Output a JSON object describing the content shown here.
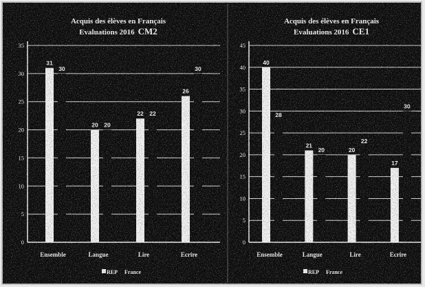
{
  "colors": {
    "background": "#0e0e0e",
    "frame": "#bdbdbd",
    "divider": "#5a5a5a"
  },
  "chart_data": [
    {
      "type": "bar",
      "title": "Acquis des élèves en Français",
      "subtitle": "Evaluations 2016",
      "level": "CM2",
      "xlabel": "",
      "ylabel": "",
      "categories": [
        "Ensemble",
        "Langue",
        "Lire",
        "Ecrire"
      ],
      "series": [
        {
          "name": "REP",
          "color": "#f2f2f2",
          "values": [
            31,
            20,
            22,
            26
          ]
        },
        {
          "name": "France",
          "color": "#0e0e0e",
          "values": [
            30,
            20,
            22,
            30
          ]
        }
      ],
      "ylim": [
        0,
        35
      ],
      "yticks": [
        0,
        5,
        10,
        15,
        20,
        25,
        30,
        35
      ],
      "grid": true,
      "legend": "bottom"
    },
    {
      "type": "bar",
      "title": "Acquis des élèves en Français",
      "subtitle": "Evaluations 2016",
      "level": "CE1",
      "xlabel": "",
      "ylabel": "",
      "categories": [
        "Ensemble",
        "Langue",
        "Lire",
        "Ecrire"
      ],
      "series": [
        {
          "name": "REP",
          "color": "#f2f2f2",
          "values": [
            40,
            21,
            20,
            17
          ]
        },
        {
          "name": "France",
          "color": "#0e0e0e",
          "values": [
            28,
            20,
            22,
            30
          ]
        }
      ],
      "ylim": [
        0,
        45
      ],
      "yticks": [
        0,
        5,
        10,
        15,
        20,
        25,
        30,
        35,
        40,
        45
      ],
      "grid": true,
      "legend": "bottom"
    }
  ]
}
